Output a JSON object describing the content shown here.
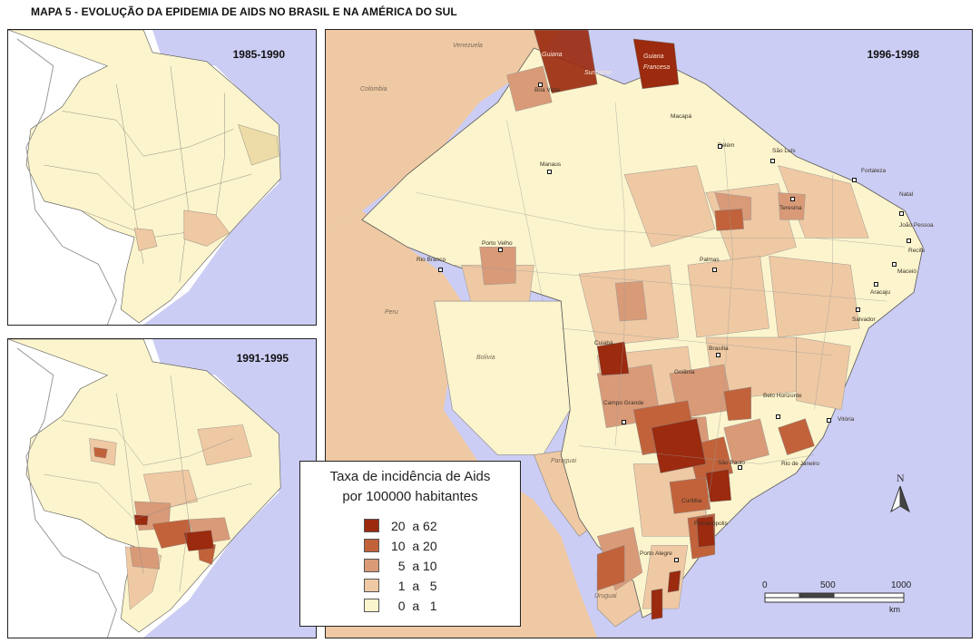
{
  "title": "MAPA 5 - EVOLUÇÃO DA EPIDEMIA DE AIDS NO BRASIL E NA AMÉRICA DO SUL",
  "panels": [
    {
      "id": "1985",
      "label": "1985-1990"
    },
    {
      "id": "1991",
      "label": "1991-1995"
    },
    {
      "id": "1996",
      "label": "1996-1998"
    }
  ],
  "legend": {
    "title_line1": "Taxa de incidência de Aids",
    "title_line2": "por 100000 habitantes",
    "classes": [
      {
        "label": "20  a 62",
        "color": "#9b2a0e"
      },
      {
        "label": "10  a 20",
        "color": "#c2623a"
      },
      {
        "label": "  5  a 10",
        "color": "#d99a78"
      },
      {
        "label": "  1  a   5",
        "color": "#efc9a3"
      },
      {
        "label": "  0  a   1",
        "color": "#fcf4cc"
      }
    ]
  },
  "colors": {
    "ocean": "#cccdf4",
    "neighbor": "#efc9a3",
    "low": "#fcf4cc"
  },
  "countries": {
    "venezuela": "Venezuela",
    "colombia": "Colombia",
    "guiana": "Guiana",
    "suriname": "Suriname",
    "guiana_francesa": "Guiana Francesa",
    "peru": "Peru",
    "bolivia": "Bolivia",
    "paraguai": "Paraguai",
    "uruguai": "Uruguai"
  },
  "cities": [
    "Boa Vista",
    "Macapá",
    "Belém",
    "São Luís",
    "Fortaleza",
    "Teresina",
    "Natal",
    "João Pessoa",
    "Recife",
    "Maceió",
    "Aracaju",
    "Salvador",
    "Manaus",
    "Porto Velho",
    "Rio Branco",
    "Palmas",
    "Brasília",
    "Goiânia",
    "Cuiabá",
    "Campo Grande",
    "Belo Horizonte",
    "Vitória",
    "Rio de Janeiro",
    "São Paulo",
    "Curitiba",
    "Florianópolis",
    "Porto Alegre"
  ],
  "scale": {
    "ticks": [
      "0",
      "500",
      "1000"
    ],
    "unit": "km"
  },
  "north_label": "N"
}
